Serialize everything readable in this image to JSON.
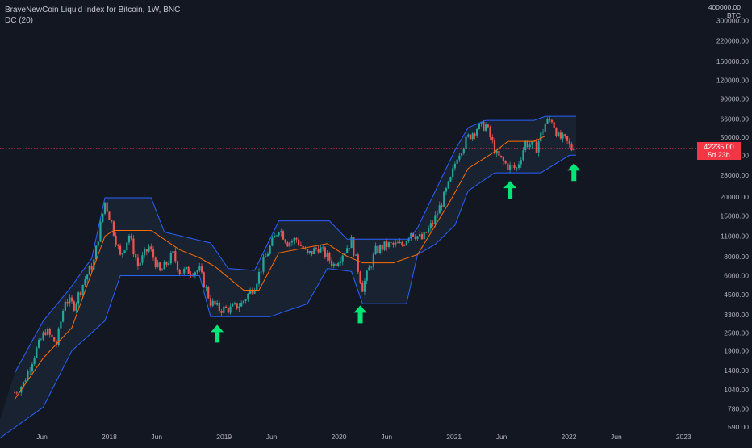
{
  "chart": {
    "title": "BraveNewCoin Liquid Index for Bitcoin, 1W, BNC",
    "indicator": "DC (20)",
    "max_label": "400000.00",
    "unit": "BTC",
    "last_price": "42235.00",
    "countdown": "5d 23h"
  },
  "colors": {
    "background": "#131722",
    "up_candle": "#26a69a",
    "down_candle": "#ef5350",
    "band_line": "#2962ff",
    "basis_line": "#ff6d00",
    "band_fill": "#1a2333",
    "arrow": "#00e676",
    "price_line": "#f23645",
    "axis_text": "#b2b5be"
  },
  "chart_data": {
    "type": "candlestick",
    "title": "BraveNewCoin Liquid Index for Bitcoin, 1W, BNC",
    "indicator": "Donchian Channel (20)",
    "y_scale": "log",
    "ylim": [
      590,
      400000
    ],
    "x_range": [
      "2017-03",
      "2023-04"
    ],
    "y_ticks": [
      "300000.00",
      "220000.00",
      "160000.00",
      "120000.00",
      "90000.00",
      "66000.00",
      "50000.00",
      "38000.00",
      "28000.00",
      "20000.00",
      "15000.00",
      "11000.00",
      "8000.00",
      "6000.00",
      "4500.00",
      "3300.00",
      "2500.00",
      "1900.00",
      "1400.00",
      "1040.00",
      "780.00",
      "590.00"
    ],
    "x_ticks": [
      "Jun",
      "2018",
      "Jun",
      "2019",
      "Jun",
      "2020",
      "Jun",
      "2021",
      "Jun",
      "2022",
      "Jun",
      "2023"
    ],
    "x_tick_dates": [
      "2017-06-01",
      "2018-01-01",
      "2018-06-01",
      "2019-01-01",
      "2019-06-01",
      "2020-01-01",
      "2020-06-01",
      "2021-01-01",
      "2021-06-01",
      "2022-01-01",
      "2022-06-01",
      "2023-01-01"
    ],
    "close_path": [
      [
        "2017-03-06",
        1000
      ],
      [
        "2017-04-03",
        1150
      ],
      [
        "2017-05-08",
        1800
      ],
      [
        "2017-06-12",
        2600
      ],
      [
        "2017-07-17",
        2100
      ],
      [
        "2017-08-14",
        4200
      ],
      [
        "2017-09-11",
        3800
      ],
      [
        "2017-10-16",
        5700
      ],
      [
        "2017-11-13",
        7500
      ],
      [
        "2017-12-04",
        13000
      ],
      [
        "2017-12-18",
        18500
      ],
      [
        "2018-01-08",
        13500
      ],
      [
        "2018-02-05",
        8000
      ],
      [
        "2018-03-05",
        11200
      ],
      [
        "2018-04-02",
        7000
      ],
      [
        "2018-05-07",
        9300
      ],
      [
        "2018-06-11",
        6300
      ],
      [
        "2018-07-23",
        8300
      ],
      [
        "2018-08-13",
        6400
      ],
      [
        "2018-10-15",
        6500
      ],
      [
        "2018-11-19",
        4000
      ],
      [
        "2018-12-17",
        3600
      ],
      [
        "2019-01-21",
        3600
      ],
      [
        "2019-02-25",
        3900
      ],
      [
        "2019-04-08",
        5200
      ],
      [
        "2019-05-13",
        8000
      ],
      [
        "2019-06-24",
        12500
      ],
      [
        "2019-07-22",
        10000
      ],
      [
        "2019-08-19",
        10500
      ],
      [
        "2019-09-23",
        8200
      ],
      [
        "2019-10-28",
        9300
      ],
      [
        "2019-12-16",
        7100
      ],
      [
        "2020-02-10",
        10200
      ],
      [
        "2020-03-16",
        5000
      ],
      [
        "2020-04-27",
        8800
      ],
      [
        "2020-06-01",
        9600
      ],
      [
        "2020-07-20",
        9600
      ],
      [
        "2020-08-17",
        11800
      ],
      [
        "2020-09-21",
        10500
      ],
      [
        "2020-10-26",
        13500
      ],
      [
        "2020-11-23",
        18500
      ],
      [
        "2020-12-21",
        26000
      ],
      [
        "2021-01-11",
        38000
      ],
      [
        "2021-02-15",
        50000
      ],
      [
        "2021-03-15",
        58000
      ],
      [
        "2021-04-12",
        60000
      ],
      [
        "2021-05-17",
        38000
      ],
      [
        "2021-06-21",
        32000
      ],
      [
        "2021-07-19",
        31000
      ],
      [
        "2021-08-16",
        46000
      ],
      [
        "2021-09-20",
        43000
      ],
      [
        "2021-10-18",
        62000
      ],
      [
        "2021-11-08",
        66000
      ],
      [
        "2021-11-29",
        50000
      ],
      [
        "2021-12-20",
        48000
      ],
      [
        "2022-01-10",
        42000
      ],
      [
        "2022-01-17",
        42235
      ]
    ],
    "donchian_upper": [
      [
        "2017-03-06",
        1350
      ],
      [
        "2017-06-05",
        3000
      ],
      [
        "2017-08-28",
        4900
      ],
      [
        "2017-11-06",
        7800
      ],
      [
        "2017-12-18",
        19800
      ],
      [
        "2018-05-14",
        19800
      ],
      [
        "2018-06-25",
        11700
      ],
      [
        "2018-11-19",
        9900
      ],
      [
        "2019-01-14",
        6700
      ],
      [
        "2019-04-08",
        6500
      ],
      [
        "2019-06-24",
        13900
      ],
      [
        "2019-12-02",
        13900
      ],
      [
        "2020-01-27",
        10500
      ],
      [
        "2020-08-10",
        10500
      ],
      [
        "2020-09-07",
        12500
      ],
      [
        "2021-01-04",
        41000
      ],
      [
        "2021-02-15",
        58000
      ],
      [
        "2021-04-12",
        64800
      ],
      [
        "2021-09-13",
        64800
      ],
      [
        "2021-10-18",
        69000
      ],
      [
        "2022-01-24",
        69000
      ]
    ],
    "donchian_basis": [
      [
        "2017-03-06",
        900
      ],
      [
        "2017-06-05",
        1700
      ],
      [
        "2017-09-04",
        2700
      ],
      [
        "2017-12-18",
        11000
      ],
      [
        "2018-01-15",
        12000
      ],
      [
        "2018-05-14",
        12000
      ],
      [
        "2018-08-13",
        8900
      ],
      [
        "2018-10-15",
        7900
      ],
      [
        "2018-12-03",
        6900
      ],
      [
        "2019-03-04",
        4800
      ],
      [
        "2019-04-22",
        4800
      ],
      [
        "2019-06-24",
        8500
      ],
      [
        "2019-11-25",
        9800
      ],
      [
        "2020-01-20",
        8200
      ],
      [
        "2020-03-16",
        7300
      ],
      [
        "2020-06-22",
        7300
      ],
      [
        "2020-09-07",
        8300
      ],
      [
        "2020-12-21",
        19000
      ],
      [
        "2021-02-15",
        31000
      ],
      [
        "2021-05-10",
        40000
      ],
      [
        "2021-06-21",
        47000
      ],
      [
        "2021-09-13",
        47000
      ],
      [
        "2021-10-18",
        51000
      ],
      [
        "2022-01-24",
        51000
      ]
    ],
    "donchian_lower": [
      [
        "2016-12-26",
        460
      ],
      [
        "2017-06-05",
        800
      ],
      [
        "2017-09-04",
        1900
      ],
      [
        "2017-12-18",
        3000
      ],
      [
        "2018-02-05",
        6000
      ],
      [
        "2018-10-15",
        6000
      ],
      [
        "2018-11-19",
        3200
      ],
      [
        "2019-05-27",
        3200
      ],
      [
        "2019-09-23",
        3900
      ],
      [
        "2019-11-25",
        6700
      ],
      [
        "2020-02-10",
        6400
      ],
      [
        "2020-03-16",
        3900
      ],
      [
        "2020-08-03",
        3900
      ],
      [
        "2020-09-07",
        8300
      ],
      [
        "2020-11-02",
        9700
      ],
      [
        "2021-01-04",
        13000
      ],
      [
        "2021-02-15",
        22000
      ],
      [
        "2021-05-10",
        29000
      ],
      [
        "2021-10-04",
        29000
      ],
      [
        "2022-01-03",
        38000
      ],
      [
        "2022-01-24",
        38000
      ]
    ],
    "arrows": [
      "2018-12-10",
      "2020-03-09",
      "2021-06-28",
      "2022-01-17"
    ],
    "current_price": 42235,
    "current_price_label": "42235.00",
    "countdown": "5d 23h"
  }
}
